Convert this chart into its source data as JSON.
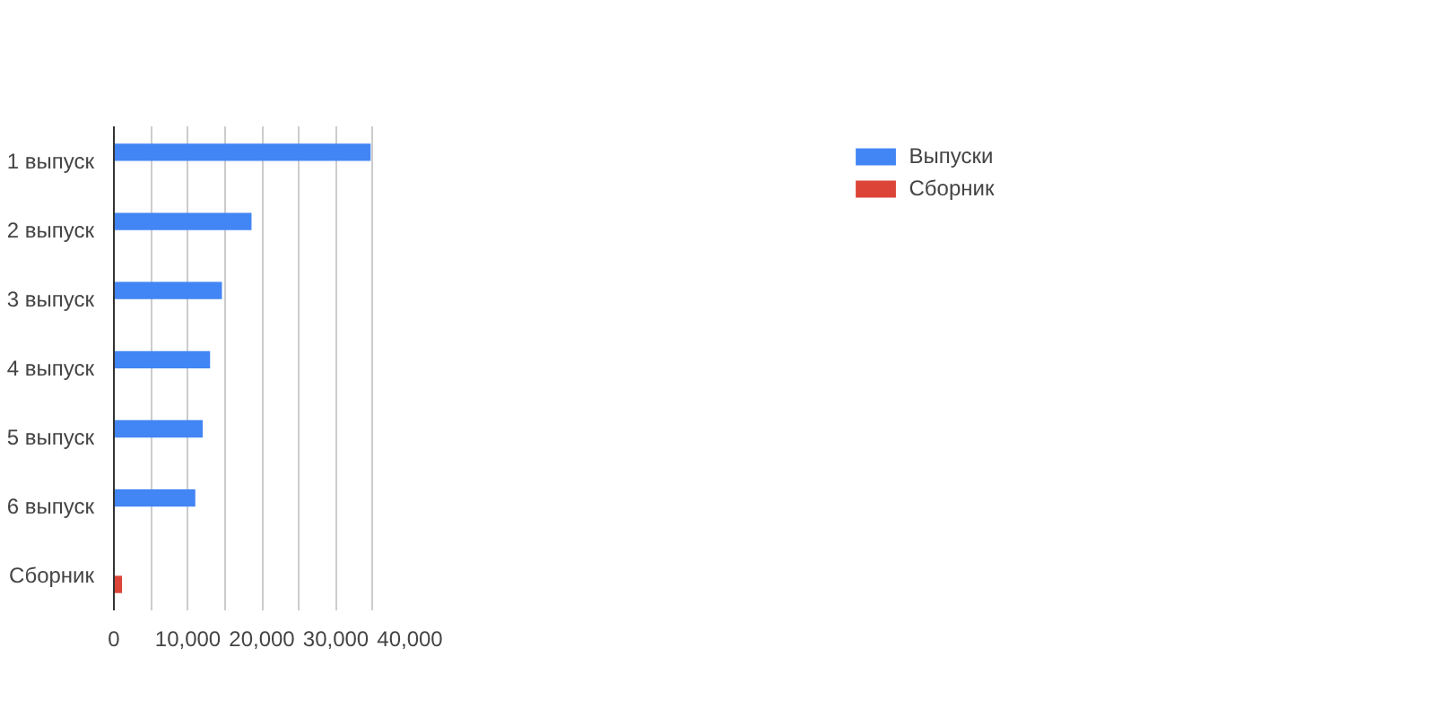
{
  "chart_data": {
    "type": "bar",
    "orientation": "horizontal",
    "categories": [
      "1 выпуск",
      "2 выпуск",
      "3 выпуск",
      "4 выпуск",
      "5 выпуск",
      "6 выпуск",
      "Сборник"
    ],
    "series": [
      {
        "name": "Выпуски",
        "color": "#4285f4",
        "values": [
          34700,
          18600,
          14600,
          13000,
          12000,
          11000,
          null
        ]
      },
      {
        "name": "Сборник",
        "color": "#db4437",
        "values": [
          null,
          null,
          null,
          null,
          null,
          null,
          1100
        ]
      }
    ],
    "xlim": [
      0,
      40000
    ],
    "xticks": [
      0,
      {
        "value": 5000,
        "label": null
      },
      "10,000",
      {
        "value": 15000,
        "label": null
      },
      {
        "value": 20000,
        "label": "20,000"
      },
      {
        "value": 25000,
        "label": null
      },
      {
        "value": 30000,
        "label": "30,000"
      },
      {
        "value": 35000,
        "label": null
      },
      {
        "value": 40000,
        "label": "40,000"
      }
    ],
    "grid": "x",
    "legend": "top right"
  }
}
